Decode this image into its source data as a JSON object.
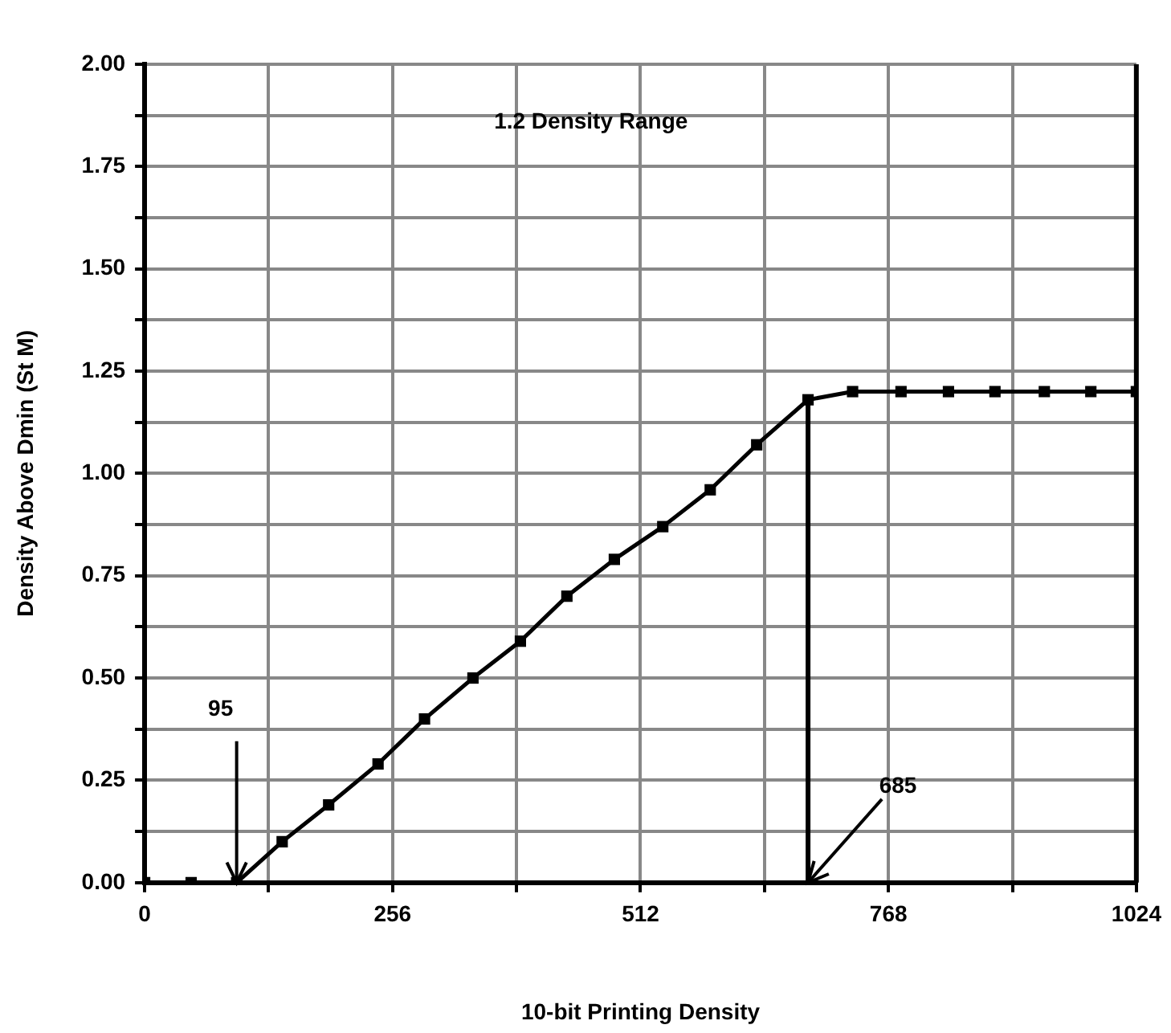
{
  "chart_data": {
    "type": "line",
    "title": "1.2 Density Range",
    "xlabel": "10-bit Printing Density",
    "ylabel": "Density Above Dmin (St M)",
    "x": [
      0,
      48,
      95,
      142,
      190,
      241,
      289,
      339,
      388,
      436,
      485,
      535,
      584,
      632,
      685,
      731,
      781,
      830,
      878,
      929,
      977,
      1024
    ],
    "series": [
      {
        "color": "#000000",
        "values": [
          0,
          0,
          0,
          0.1,
          0.19,
          0.29,
          0.4,
          0.5,
          0.59,
          0.7,
          0.79,
          0.87,
          0.96,
          1.07,
          1.18,
          1.2,
          1.2,
          1.2,
          1.2,
          1.2,
          1.2,
          1.2
        ]
      }
    ],
    "xlim": [
      0,
      1024
    ],
    "xticks": [
      0,
      {
        "value": 128,
        "label": null
      },
      256,
      {
        "value": 384,
        "label": null
      },
      512,
      {
        "value": 640,
        "label": null
      },
      768,
      {
        "value": 896,
        "label": null
      },
      1024
    ],
    "ylim": [
      0,
      2
    ],
    "yticks": [
      {
        "value": 0,
        "label": "0.00"
      },
      {
        "value": 0.125,
        "label": null
      },
      {
        "value": 0.25,
        "label": "0.25"
      },
      {
        "value": 0.375,
        "label": null
      },
      {
        "value": 0.5,
        "label": "0.50"
      },
      {
        "value": 0.625,
        "label": null
      },
      {
        "value": 0.75,
        "label": "0.75"
      },
      {
        "value": 0.875,
        "label": null
      },
      {
        "value": 1,
        "label": "1.00"
      },
      {
        "value": 1.125,
        "label": null
      },
      {
        "value": 1.25,
        "label": "1.25"
      },
      {
        "value": 1.375,
        "label": null
      },
      {
        "value": 1.5,
        "label": "1.50"
      },
      {
        "value": 1.625,
        "label": null
      },
      {
        "value": 1.75,
        "label": "1.75"
      },
      {
        "value": 1.875,
        "label": null
      },
      {
        "value": 2,
        "label": "2.00"
      }
    ],
    "ref_lines": [
      {
        "axis": "x",
        "value": 685,
        "color": "#000000"
      }
    ],
    "annotations": [
      {
        "text": "95",
        "x": 95,
        "y": 0
      },
      {
        "text": "685",
        "x": 685,
        "y": 0
      }
    ],
    "grid": true,
    "legend": false,
    "marker": "square",
    "line_style": "solid"
  }
}
